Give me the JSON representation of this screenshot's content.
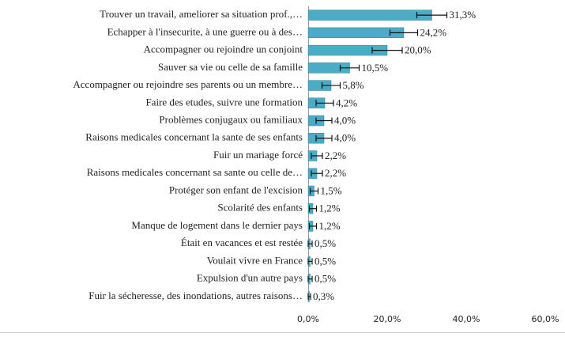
{
  "chart_data": {
    "type": "bar",
    "orientation": "horizontal",
    "color": "#4bacc6",
    "categories": [
      "Trouver un travail, ameliorer sa situation prof.,…",
      "Echapper à l'insecurite, à une guerre ou à des…",
      "Accompagner ou rejoindre un conjoint",
      "Sauver sa vie ou celle de sa famille",
      "Accompagner ou rejoindre ses parents ou un membre…",
      "Faire des etudes, suivre une formation",
      "Problèmes conjugaux ou familiaux",
      "Raisons medicales concernant la sante de ses enfants",
      "Fuir un mariage forcé",
      "Raisons medicales concernant sa sante ou celle de…",
      "Protéger son enfant de l'excision",
      "Scolarité des enfants",
      "Manque de logement dans le dernier pays",
      "Était en vacances et est restée",
      "Voulait vivre en France",
      "Expulsion d'un autre pays",
      "Fuir la sécheresse, des inondations, autres raisons…"
    ],
    "values": [
      31.3,
      24.2,
      20.0,
      10.5,
      5.8,
      4.2,
      4.0,
      4.0,
      2.2,
      2.2,
      1.5,
      1.2,
      1.2,
      0.5,
      0.5,
      0.5,
      0.3
    ],
    "value_labels": [
      "31,3%",
      "24,2%",
      "20,0%",
      "10,5%",
      "5,8%",
      "4,2%",
      "4,0%",
      "4,0%",
      "2,2%",
      "2,2%",
      "1,5%",
      "1,2%",
      "1,2%",
      "0,5%",
      "0,5%",
      "0,5%",
      "0,3%"
    ],
    "errors": [
      3.8,
      3.5,
      3.8,
      2.4,
      2.3,
      2.2,
      2.0,
      2.0,
      1.4,
      1.4,
      1.0,
      0.9,
      0.9,
      0.5,
      0.5,
      0.5,
      0.3
    ],
    "xlim": [
      0,
      60
    ],
    "xticks": [
      {
        "value": 0,
        "label": "0,0%"
      },
      {
        "value": 20,
        "label": "20,0%"
      },
      {
        "value": 40,
        "label": "40,0%"
      },
      {
        "value": 60,
        "label": "60,0%"
      }
    ]
  }
}
